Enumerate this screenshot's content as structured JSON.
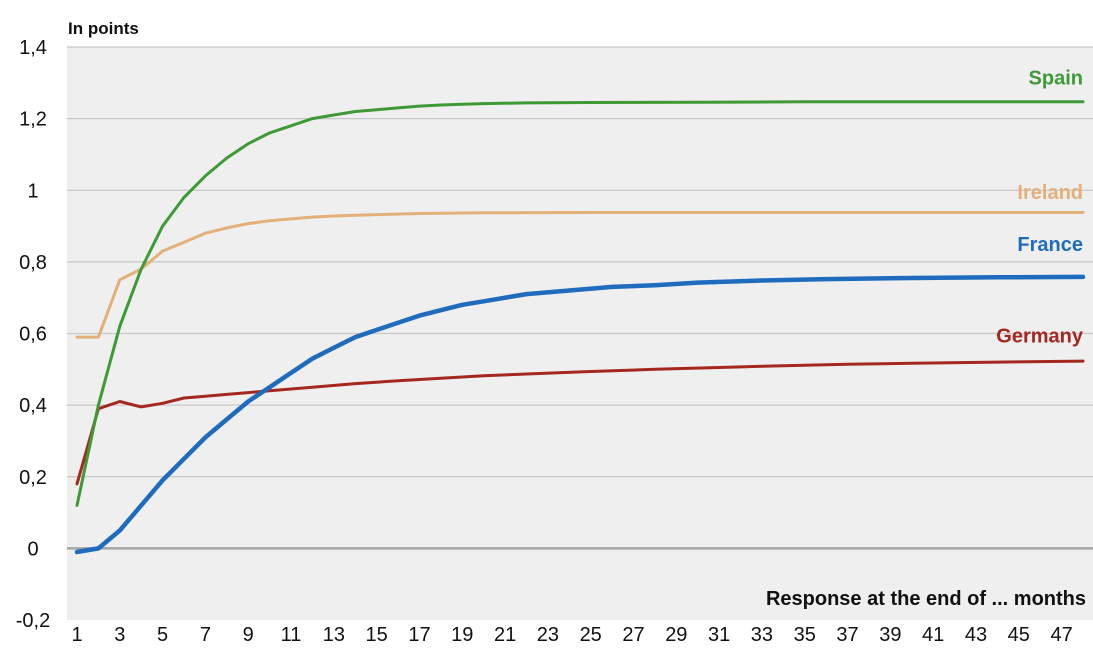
{
  "chart_data": {
    "type": "line",
    "unit_label": "In points",
    "xlabel": "Response at the end of ... months",
    "ylabel": "",
    "ylim": [
      -0.2,
      1.4
    ],
    "xlim": [
      1,
      48
    ],
    "y_ticks": [
      -0.2,
      0,
      0.2,
      0.4,
      0.6,
      0.8,
      1,
      1.2,
      1.4
    ],
    "y_tick_labels": [
      "-0,2",
      "0",
      "0,2",
      "0,4",
      "0,6",
      "0,8",
      "1",
      "1,2",
      "1,4"
    ],
    "x_ticks": [
      1,
      3,
      5,
      7,
      9,
      11,
      13,
      15,
      17,
      19,
      21,
      23,
      25,
      27,
      29,
      31,
      33,
      35,
      37,
      39,
      41,
      43,
      45,
      47
    ],
    "grid": "horizontal",
    "background": "#efefef",
    "series": [
      {
        "name": "Spain",
        "color": "#3d9a35",
        "x": [
          1,
          2,
          3,
          4,
          5,
          6,
          7,
          8,
          9,
          10,
          11,
          12,
          13,
          14,
          15,
          16,
          17,
          18,
          19,
          20,
          22,
          25,
          30,
          35,
          40,
          48
        ],
        "values": [
          0.12,
          0.4,
          0.62,
          0.78,
          0.9,
          0.98,
          1.04,
          1.09,
          1.13,
          1.16,
          1.18,
          1.2,
          1.21,
          1.22,
          1.225,
          1.23,
          1.235,
          1.238,
          1.24,
          1.242,
          1.244,
          1.245,
          1.246,
          1.247,
          1.247,
          1.247
        ]
      },
      {
        "name": "Ireland",
        "color": "#e4b07a",
        "x": [
          1,
          2,
          3,
          4,
          5,
          6,
          7,
          8,
          9,
          10,
          11,
          12,
          13,
          14,
          15,
          17,
          20,
          25,
          30,
          40,
          48
        ],
        "values": [
          0.59,
          0.59,
          0.75,
          0.78,
          0.83,
          0.855,
          0.88,
          0.895,
          0.907,
          0.915,
          0.92,
          0.925,
          0.928,
          0.93,
          0.932,
          0.935,
          0.937,
          0.938,
          0.938,
          0.938,
          0.938
        ]
      },
      {
        "name": "France",
        "color": "#1f6cbe",
        "x": [
          1,
          2,
          3,
          4,
          5,
          6,
          7,
          8,
          9,
          10,
          11,
          12,
          13,
          14,
          15,
          16,
          17,
          18,
          19,
          20,
          22,
          24,
          26,
          28,
          30,
          33,
          36,
          40,
          44,
          48
        ],
        "values": [
          -0.01,
          0.0,
          0.05,
          0.12,
          0.19,
          0.25,
          0.31,
          0.36,
          0.41,
          0.45,
          0.49,
          0.53,
          0.56,
          0.59,
          0.61,
          0.63,
          0.65,
          0.665,
          0.68,
          0.69,
          0.71,
          0.72,
          0.73,
          0.735,
          0.742,
          0.748,
          0.752,
          0.755,
          0.757,
          0.758
        ]
      },
      {
        "name": "Germany",
        "color": "#a4281f",
        "x": [
          1,
          2,
          3,
          4,
          5,
          6,
          7,
          8,
          9,
          10,
          12,
          14,
          16,
          18,
          20,
          22,
          25,
          28,
          31,
          34,
          37,
          40,
          44,
          48
        ],
        "values": [
          0.18,
          0.39,
          0.41,
          0.395,
          0.405,
          0.42,
          0.425,
          0.43,
          0.435,
          0.44,
          0.45,
          0.46,
          0.468,
          0.475,
          0.482,
          0.487,
          0.494,
          0.5,
          0.505,
          0.51,
          0.514,
          0.517,
          0.52,
          0.523
        ]
      }
    ]
  }
}
